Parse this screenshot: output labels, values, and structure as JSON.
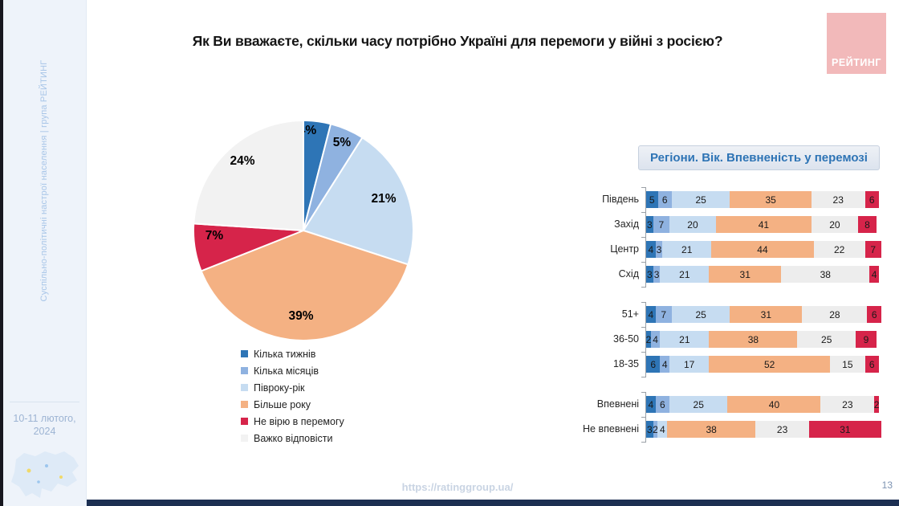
{
  "slide": {
    "title": "Як Ви вважаєте, скільки часу потрібно Україні для перемоги у війні з росією?",
    "url": "https://ratinggroup.ua/",
    "page_number": "13",
    "logo_text": "РЕЙТИНГ"
  },
  "sidebar": {
    "vertical_text": "Суспільно-політичні настрої населення | група РЕЙТИНГ",
    "date": "10-11 лютого, 2024"
  },
  "panel_header": "Регіони. Вік. Впевненість у перемозі",
  "colors": {
    "dark_blue": "#2e75b6",
    "medium_blue": "#8fb2e0",
    "light_blue": "#c6dcf1",
    "orange": "#f4b183",
    "red": "#d6244a",
    "gray": "#ededed",
    "pie_gray": "#f2f2f2",
    "accent_text_blue": "#2e74b5",
    "logo_pink": "#f2b9ba"
  },
  "chart_data": [
    {
      "type": "pie",
      "title": "Як Ви вважаєте, скільки часу потрібно Україні для перемоги у війні з росією?",
      "labels": [
        "Кілька тижнів",
        "Кілька місяців",
        "Півроку-рік",
        "Більше року",
        "Не вірю в перемогу",
        "Важко відповісти"
      ],
      "values": [
        4,
        5,
        21,
        39,
        7,
        24
      ],
      "value_labels": [
        "4%",
        "5%",
        "21%",
        "39%",
        "7%",
        "24%"
      ],
      "colors": [
        "#2e75b6",
        "#8fb2e0",
        "#c6dcf1",
        "#f4b183",
        "#d6244a",
        "#f2f2f2"
      ],
      "legend_position": "bottom-left",
      "start_angle_deg": 0,
      "direction": "clockwise"
    },
    {
      "type": "bar",
      "orientation": "horizontal",
      "stacked": true,
      "title": "Регіони. Вік. Впевненість у перемозі",
      "categories": [
        "Південь",
        "Захід",
        "Центр",
        "Схід",
        "51+",
        "36-50",
        "18-35",
        "Впевнені",
        "Не впевнені"
      ],
      "groups": [
        [
          "Південь",
          "Захід",
          "Центр",
          "Схід"
        ],
        [
          "51+",
          "36-50",
          "18-35"
        ],
        [
          "Впевнені",
          "Не впевнені"
        ]
      ],
      "xlim": [
        0,
        100
      ],
      "series": [
        {
          "name": "Кілька тижнів",
          "color": "#2e75b6",
          "values": [
            5,
            3,
            4,
            3,
            4,
            2,
            6,
            4,
            3
          ]
        },
        {
          "name": "Кілька місяців",
          "color": "#8fb2e0",
          "values": [
            6,
            7,
            3,
            3,
            7,
            4,
            4,
            6,
            2
          ]
        },
        {
          "name": "Півроку-рік",
          "color": "#c6dcf1",
          "values": [
            25,
            20,
            21,
            21,
            25,
            21,
            17,
            25,
            4
          ]
        },
        {
          "name": "Більше року",
          "color": "#f4b183",
          "values": [
            35,
            41,
            44,
            31,
            31,
            38,
            52,
            40,
            38
          ]
        },
        {
          "name": "Важко відповісти",
          "color": "#ededed",
          "values": [
            23,
            20,
            22,
            38,
            28,
            25,
            15,
            23,
            23
          ]
        },
        {
          "name": "Не вірю в перемогу",
          "color": "#d6244a",
          "values": [
            6,
            8,
            7,
            4,
            6,
            9,
            6,
            2,
            31
          ]
        }
      ]
    }
  ]
}
